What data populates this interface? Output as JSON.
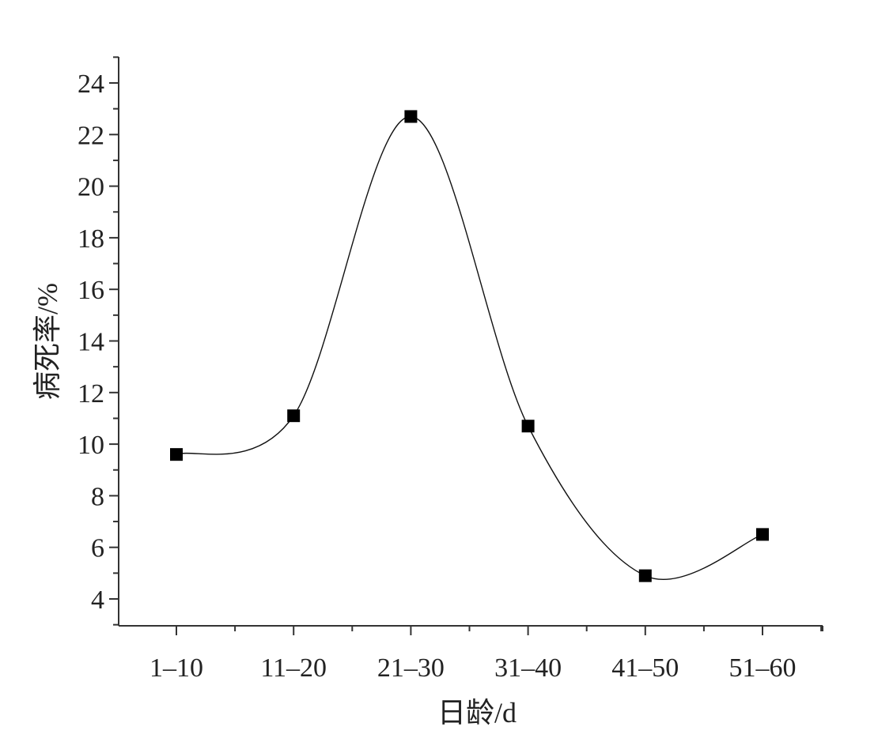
{
  "chart_data": {
    "type": "line",
    "categories": [
      "1–10",
      "11–20",
      "21–30",
      "31–40",
      "41–50",
      "51–60"
    ],
    "series": [
      {
        "values": [
          9.6,
          11.1,
          22.7,
          10.7,
          4.9,
          6.5
        ]
      }
    ],
    "smoothed": true,
    "marker": "square",
    "xlabel": "日龄/d",
    "ylabel": "病死率/%",
    "ylim": [
      3,
      25
    ],
    "yticks": [
      4,
      6,
      8,
      10,
      12,
      14,
      16,
      18,
      20,
      22,
      24
    ],
    "grid": false,
    "colors": {
      "line": "#111111",
      "marker": "#000000",
      "axis": "#333333",
      "text": "#222222"
    }
  }
}
